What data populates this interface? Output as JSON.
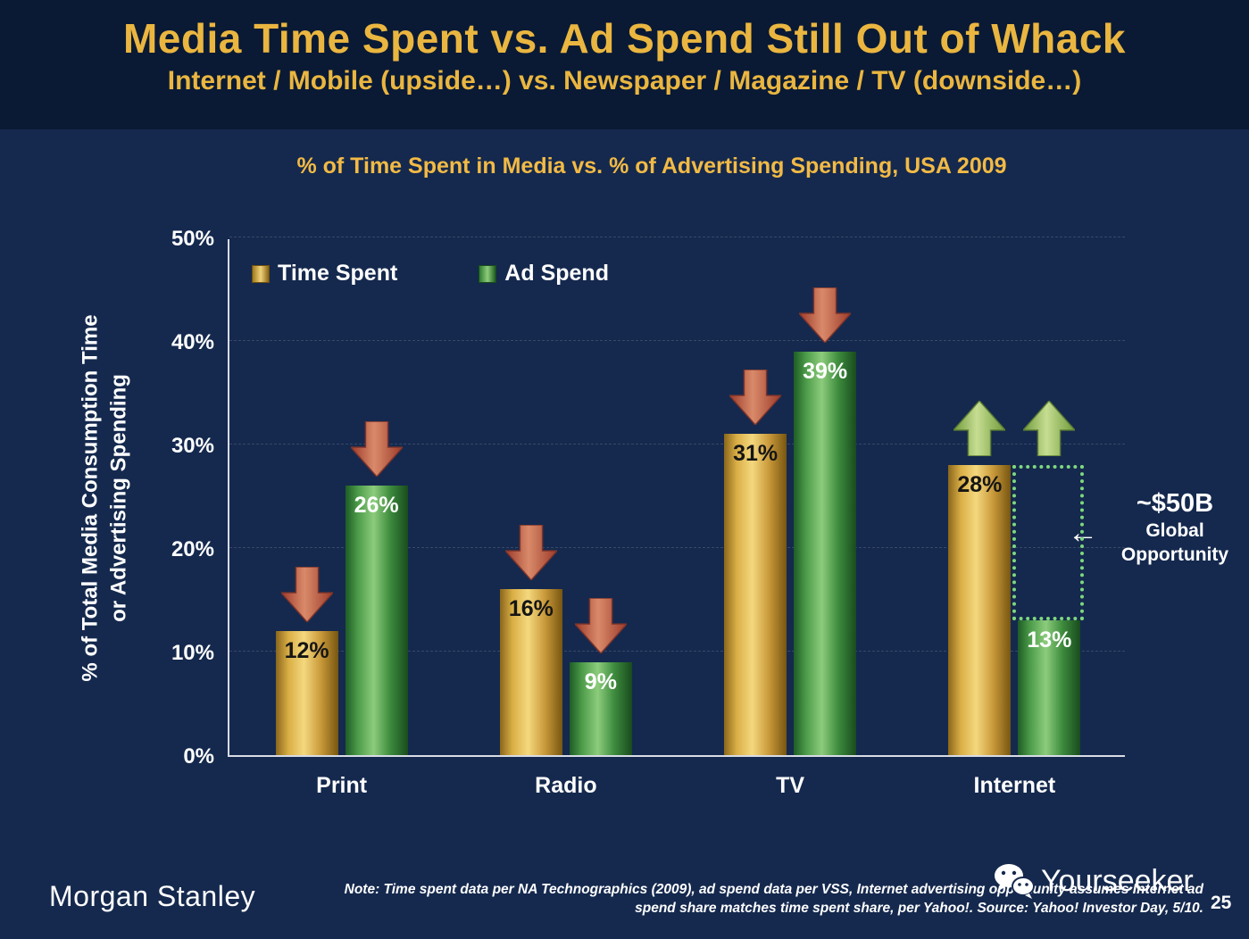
{
  "header": {
    "title": "Media Time Spent vs. Ad Spend Still Out of Whack",
    "subtitle": "Internet / Mobile (upside…) vs. Newspaper / Magazine / TV (downside…)"
  },
  "chart_data": {
    "type": "bar",
    "title": "% of Time Spent in Media vs. % of Advertising Spending, USA 2009",
    "ylabel_lines": [
      "% of Total Media Consumption Time",
      "or Advertising Spending"
    ],
    "categories": [
      "Print",
      "Radio",
      "TV",
      "Internet"
    ],
    "series": [
      {
        "name": "Time Spent",
        "color": "#d9a83f",
        "values": [
          12,
          16,
          31,
          28
        ]
      },
      {
        "name": "Ad Spend",
        "color": "#4f9e49",
        "values": [
          26,
          9,
          39,
          13
        ]
      }
    ],
    "trend_arrows": [
      [
        "down",
        "down"
      ],
      [
        "down",
        "down"
      ],
      [
        "down",
        "down"
      ],
      [
        "up",
        "up"
      ]
    ],
    "arrow_colors": {
      "down": "#bf5b45",
      "up": "#9dc26a"
    },
    "ylim": [
      0,
      50
    ],
    "yticks": [
      "0%",
      "10%",
      "20%",
      "30%",
      "40%",
      "50%"
    ],
    "grid": true,
    "legend_position": "top-left",
    "annotation": {
      "headline": "~$50B",
      "lines": [
        "Global",
        "Opportunity"
      ],
      "category": "Internet",
      "span": [
        13,
        28
      ]
    }
  },
  "footer": {
    "brand": "Morgan Stanley",
    "note_lines": [
      "Note: Time spent data per NA Technographics (2009), ad spend data per VSS, Internet advertising opportunity assumes Internet ad",
      "spend share matches time spent share, per Yahoo!. Source: Yahoo! Investor Day, 5/10."
    ],
    "watermark": "Yourseeker",
    "page_number": "25"
  }
}
